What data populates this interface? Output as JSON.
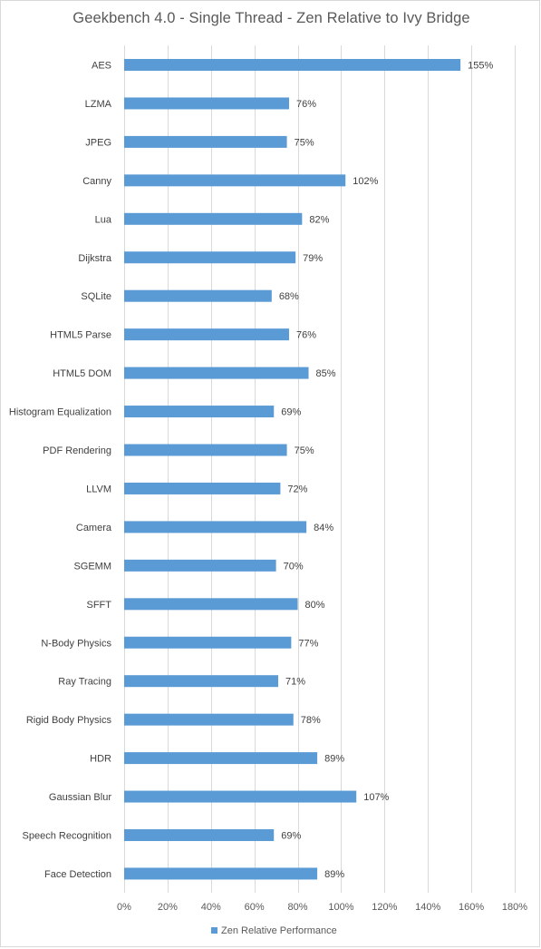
{
  "chart_data": {
    "type": "bar",
    "orientation": "horizontal",
    "title": "Geekbench 4.0 - Single Thread - Zen Relative to Ivy Bridge",
    "categories": [
      "AES",
      "LZMA",
      "JPEG",
      "Canny",
      "Lua",
      "Dijkstra",
      "SQLite",
      "HTML5 Parse",
      "HTML5 DOM",
      "Histogram Equalization",
      "PDF Rendering",
      "LLVM",
      "Camera",
      "SGEMM",
      "SFFT",
      "N-Body Physics",
      "Ray Tracing",
      "Rigid Body Physics",
      "HDR",
      "Gaussian Blur",
      "Speech Recognition",
      "Face Detection"
    ],
    "series": [
      {
        "name": "Zen Relative Performance",
        "color": "#5b9bd5",
        "values": [
          155,
          76,
          75,
          102,
          82,
          79,
          68,
          76,
          85,
          69,
          75,
          72,
          84,
          70,
          80,
          77,
          71,
          78,
          89,
          107,
          69,
          89
        ],
        "labels": [
          "155%",
          "76%",
          "75%",
          "102%",
          "82%",
          "79%",
          "68%",
          "76%",
          "85%",
          "69%",
          "75%",
          "72%",
          "84%",
          "70%",
          "80%",
          "77%",
          "71%",
          "78%",
          "89%",
          "107%",
          "69%",
          "89%"
        ]
      }
    ],
    "xlim": [
      0,
      180
    ],
    "xticks": [
      0,
      20,
      40,
      60,
      80,
      100,
      120,
      140,
      160,
      180
    ],
    "xtick_labels": [
      "0%",
      "20%",
      "40%",
      "60%",
      "80%",
      "100%",
      "120%",
      "140%",
      "160%",
      "180%"
    ],
    "grid": "vertical",
    "legend": "bottom",
    "gridline_color": "#d9d9d9"
  }
}
